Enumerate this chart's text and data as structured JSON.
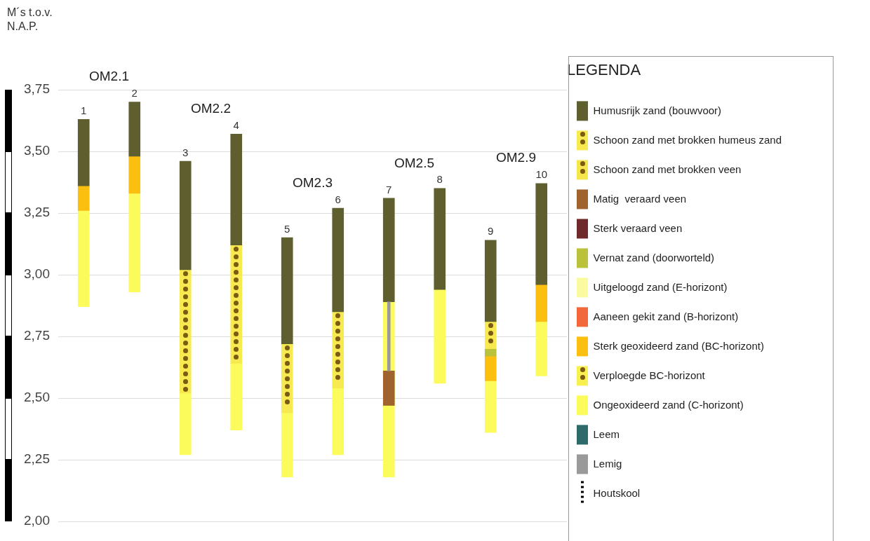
{
  "chart_data": {
    "type": "bar",
    "ylabel": "M´s t.o.v. N.A.P.",
    "legend_title": "LEGENDA",
    "legend": "right",
    "grid": "y",
    "categories": [
      "1",
      "2",
      "3",
      "4",
      "5",
      "6",
      "7",
      "8",
      "9",
      "10"
    ],
    "ylim": [
      2.0,
      3.75
    ],
    "yticks": [
      {
        "value": 2.0,
        "label": "2,00"
      },
      {
        "value": 2.25,
        "label": "2,25"
      },
      {
        "value": 2.5,
        "label": "2,50"
      },
      {
        "value": 2.75,
        "label": "2,75"
      },
      {
        "value": 3.0,
        "label": "3,00"
      },
      {
        "value": 3.25,
        "label": "3,25"
      },
      {
        "value": 3.5,
        "label": "3,50"
      },
      {
        "value": 3.75,
        "label": "3,75"
      }
    ],
    "annotations": [
      "OM2.1",
      "OM2.2",
      "OM2.3",
      "OM2.5",
      "OM2.9"
    ],
    "series": [
      {
        "name": "Humusrijk zand (bouwvoor)",
        "color": "#5f5e2e",
        "base": [
          3.36,
          3.48,
          3.02,
          3.12,
          2.72,
          2.85,
          2.89,
          2.94,
          2.81,
          2.96
        ],
        "values": [
          0.27,
          0.22,
          0.44,
          0.45,
          0.43,
          0.42,
          0.42,
          0.41,
          0.33,
          0.41
        ]
      },
      {
        "name": "Schoon zand met brokken humeus zand",
        "color": "#f7ea50",
        "marker": "circle",
        "base": [
          null,
          null,
          2.52,
          2.64,
          2.44,
          2.54,
          null,
          null,
          2.7,
          null
        ],
        "values": [
          null,
          null,
          0.5,
          0.48,
          0.28,
          0.31,
          null,
          null,
          0.11,
          null
        ]
      },
      {
        "name": "Schoon zand met brokken veen",
        "color": "#f5e64c",
        "marker": "circle",
        "base": [
          null,
          null,
          null,
          null,
          null,
          null,
          null,
          null,
          null,
          null
        ],
        "values": [
          null,
          null,
          null,
          null,
          null,
          null,
          null,
          null,
          null,
          null
        ]
      },
      {
        "name": "Matig  veraard veen",
        "color": "#a0632d",
        "base": [
          null,
          null,
          null,
          null,
          null,
          null,
          2.47,
          null,
          null,
          null
        ],
        "values": [
          null,
          null,
          null,
          null,
          null,
          null,
          0.14,
          null,
          null,
          null
        ]
      },
      {
        "name": "Sterk veraard veen",
        "color": "#6e2a2a",
        "base": [
          null,
          null,
          null,
          null,
          null,
          null,
          null,
          null,
          null,
          null
        ],
        "values": [
          null,
          null,
          null,
          null,
          null,
          null,
          null,
          null,
          null,
          null
        ]
      },
      {
        "name": "Vernat zand (doorworteld)",
        "color": "#b9c23a",
        "base": [
          null,
          null,
          null,
          null,
          null,
          null,
          null,
          null,
          2.67,
          null
        ],
        "values": [
          null,
          null,
          null,
          null,
          null,
          null,
          null,
          null,
          0.03,
          null
        ]
      },
      {
        "name": "Uitgeloogd zand (E-horizont)",
        "color": "#fafaa0",
        "base": [
          null,
          null,
          null,
          null,
          null,
          null,
          null,
          null,
          null,
          null
        ],
        "values": [
          null,
          null,
          null,
          null,
          null,
          null,
          null,
          null,
          null,
          null
        ]
      },
      {
        "name": "Aaneen gekit zand (B-horizont)",
        "color": "#f2683a",
        "base": [
          null,
          null,
          null,
          null,
          null,
          null,
          null,
          null,
          null,
          null
        ],
        "values": [
          null,
          null,
          null,
          null,
          null,
          null,
          null,
          null,
          null,
          null
        ]
      },
      {
        "name": "Sterk geoxideerd zand (BC-horizont)",
        "color": "#fbbf10",
        "base": [
          3.26,
          3.33,
          null,
          null,
          null,
          null,
          null,
          null,
          2.57,
          2.81
        ],
        "values": [
          0.1,
          0.15,
          null,
          null,
          null,
          null,
          null,
          null,
          0.1,
          0.15
        ]
      },
      {
        "name": "Verploegde BC-horizont",
        "color": "#f8f050",
        "marker": "circle",
        "base": [
          null,
          null,
          null,
          null,
          null,
          null,
          null,
          null,
          null,
          null
        ],
        "values": [
          null,
          null,
          null,
          null,
          null,
          null,
          null,
          null,
          null,
          null
        ]
      },
      {
        "name": "Ongeoxideerd zand (C-horizont)",
        "color": "#fbfb5c",
        "base": [
          2.87,
          2.93,
          2.27,
          2.37,
          2.18,
          2.27,
          2.18,
          2.56,
          2.36,
          2.59
        ],
        "values": [
          0.39,
          0.4,
          0.25,
          0.27,
          0.26,
          0.27,
          0.71,
          0.38,
          0.21,
          0.22
        ]
      },
      {
        "name": "Leem",
        "color": "#2f6a6a",
        "base": [
          null,
          null,
          null,
          null,
          null,
          null,
          null,
          null,
          null,
          null
        ],
        "values": [
          null,
          null,
          null,
          null,
          null,
          null,
          null,
          null,
          null,
          null
        ]
      },
      {
        "name": "Lemig",
        "color": "#9a9a9a",
        "line_style": "solid",
        "base": [
          null,
          null,
          null,
          null,
          null,
          null,
          2.61,
          null,
          null,
          null
        ],
        "values": [
          null,
          null,
          null,
          null,
          null,
          null,
          0.28,
          null,
          null,
          null
        ]
      },
      {
        "name": "Houtskool",
        "color": "#000000",
        "line_style": "dotted",
        "base": [
          null,
          null,
          null,
          null,
          null,
          null,
          null,
          null,
          null,
          null
        ],
        "values": [
          null,
          null,
          null,
          null,
          null,
          null,
          null,
          null,
          null,
          null
        ]
      }
    ]
  }
}
